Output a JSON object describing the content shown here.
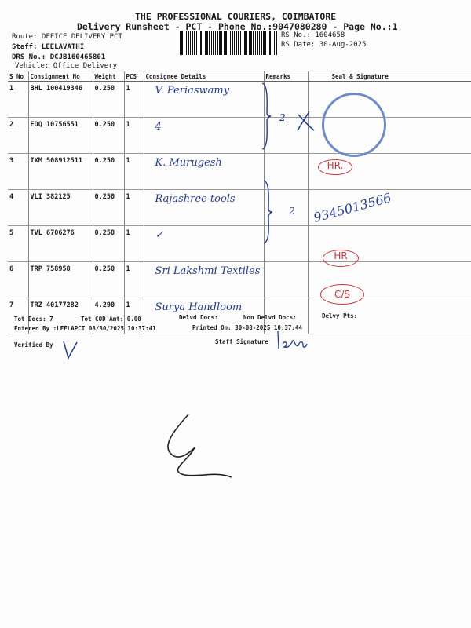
{
  "header": {
    "company": "THE PROFESSIONAL COURIERS, COIMBATORE",
    "title": "Delivery Runsheet - PCT - Phone No.:9047080280 - Page No.:1",
    "route": "Route: OFFICE DELIVERY PCT",
    "staff": "Staff: LEELAVATHI",
    "drs": "DRS No.: DCJB160465801",
    "vehicle": "Vehicle: Office Delivery",
    "rs_no": "RS No.: 1604658",
    "rs_date": "RS Date: 30-Aug-2025"
  },
  "table": {
    "headers": [
      "S No",
      "Consignment No",
      "Weight",
      "PCS",
      "Consignee Details",
      "Remarks",
      "Seal & Signature"
    ],
    "rows": [
      {
        "sno": "1",
        "cn": "BHL 100419346",
        "wt": "0.250",
        "pcs": "1",
        "consignee": "V. Periaswamy"
      },
      {
        "sno": "2",
        "cn": "EDQ 10756551",
        "wt": "0.250",
        "pcs": "1",
        "consignee": "4"
      },
      {
        "sno": "3",
        "cn": "IXM 508912511",
        "wt": "0.250",
        "pcs": "1",
        "consignee": "K. Murugesh"
      },
      {
        "sno": "4",
        "cn": "VLI 382125",
        "wt": "0.250",
        "pcs": "1",
        "consignee": "Rajashree tools"
      },
      {
        "sno": "5",
        "cn": "TVL 6706276",
        "wt": "0.250",
        "pcs": "1",
        "consignee": "✓"
      },
      {
        "sno": "6",
        "cn": "TRP 758958",
        "wt": "0.250",
        "pcs": "1",
        "consignee": "Sri Lakshmi Textiles"
      },
      {
        "sno": "7",
        "cn": "TRZ 40177282",
        "wt": "4.290",
        "pcs": "1",
        "consignee": "Surya Handloom"
      }
    ]
  },
  "annotations": {
    "remark_a": "2",
    "remark_b": "2",
    "phone": "9345013566",
    "hr1": "HR.",
    "hr2": "HR",
    "cs": "C/S"
  },
  "footer": {
    "tot_docs": "Tot Docs:   7",
    "tot_cod": "Tot COD Amt:    0.00",
    "delvd": "Delvd Docs:",
    "non_delvd": "Non Delvd Docs:",
    "delvy_pts": "Delvy Pts:",
    "entered_by": "Entered By :LEELAPCT 08/30/2025 10:37:41",
    "printed_on": "Printed On: 30-08-2025 10:37:44",
    "verified_by": "Verified By",
    "staff_signature": "Staff Signature"
  },
  "colors": {
    "ink": "#243a8c",
    "red_ink": "#c8333a",
    "stamp": "#6f8bc6"
  }
}
